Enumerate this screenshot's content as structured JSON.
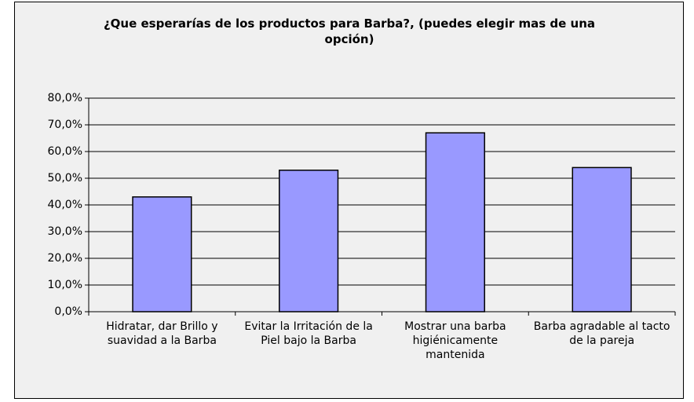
{
  "chart_data": {
    "type": "bar",
    "title": "¿Que esperarías de los productos para Barba?, (puedes elegir mas de una opción)",
    "categories": [
      "Hidratar, dar Brillo y suavidad a la Barba",
      "Evitar la Irritación de la Piel bajo la Barba",
      "Mostrar una barba higiénicamente mantenida",
      "Barba agradable al tacto de la pareja"
    ],
    "values": [
      43,
      53,
      67,
      54
    ],
    "color": "#9999ff",
    "ylim": [
      0,
      80
    ],
    "yticks": [
      {
        "value": 0,
        "label": "0,0%"
      },
      {
        "value": 10,
        "label": "10,0%"
      },
      {
        "value": 20,
        "label": "20,0%"
      },
      {
        "value": 30,
        "label": "30,0%"
      },
      {
        "value": 40,
        "label": "40,0%"
      },
      {
        "value": 50,
        "label": "50,0%"
      },
      {
        "value": 60,
        "label": "60,0%"
      },
      {
        "value": 70,
        "label": "70,0%"
      },
      {
        "value": 80,
        "label": "80,0%"
      }
    ],
    "grid": true
  }
}
